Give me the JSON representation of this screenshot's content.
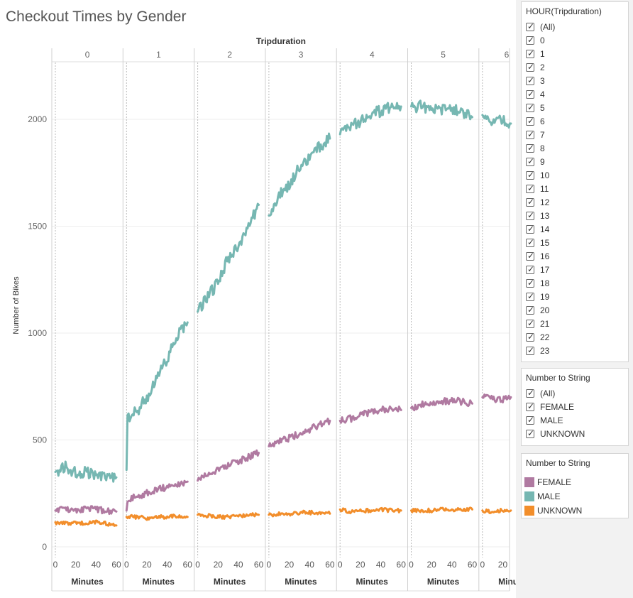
{
  "title": "Checkout Times by Gender",
  "chart_data": {
    "type": "line",
    "title": "Checkout Times by Gender",
    "column_header": "Tripduration",
    "columns": [
      "0",
      "1",
      "2",
      "3",
      "4",
      "5",
      "6"
    ],
    "ylabel": "Number of Bikes",
    "xlabel": "Minutes",
    "ylim": [
      0,
      2300
    ],
    "yticks": [
      0,
      500,
      1000,
      1500,
      2000
    ],
    "xticks": [
      0,
      20,
      40,
      60
    ],
    "last_panel_xticks": [
      0,
      20
    ],
    "grid": true,
    "series": [
      {
        "name": "MALE",
        "color": "#76b7b2",
        "panels": [
          {
            "x": [
              0,
              10,
              20,
              30,
              40,
              50,
              60
            ],
            "y": [
              350,
              375,
              345,
              355,
              330,
              335,
              325
            ]
          },
          {
            "x": [
              0,
              1,
              10,
              20,
              30,
              40,
              50,
              60
            ],
            "y": [
              360,
              610,
              630,
              700,
              790,
              880,
              990,
              1050
            ]
          },
          {
            "x": [
              0,
              10,
              20,
              30,
              40,
              50,
              60
            ],
            "y": [
              1100,
              1170,
              1240,
              1350,
              1410,
              1500,
              1600
            ]
          },
          {
            "x": [
              0,
              10,
              20,
              30,
              40,
              50,
              60
            ],
            "y": [
              1550,
              1640,
              1700,
              1770,
              1820,
              1870,
              1910
            ]
          },
          {
            "x": [
              0,
              10,
              20,
              30,
              40,
              50,
              60
            ],
            "y": [
              1930,
              1960,
              1990,
              2020,
              2040,
              2060,
              2060
            ]
          },
          {
            "x": [
              0,
              10,
              20,
              30,
              40,
              50,
              60
            ],
            "y": [
              2060,
              2060,
              2050,
              2050,
              2050,
              2040,
              2010
            ]
          },
          {
            "x": [
              0,
              10,
              20,
              28
            ],
            "y": [
              2020,
              1990,
              1990,
              1980
            ]
          }
        ]
      },
      {
        "name": "FEMALE",
        "color": "#b07aa1",
        "panels": [
          {
            "x": [
              0,
              10,
              20,
              30,
              40,
              50,
              60
            ],
            "y": [
              170,
              175,
              170,
              180,
              175,
              170,
              165
            ]
          },
          {
            "x": [
              0,
              1,
              10,
              20,
              30,
              40,
              50,
              60
            ],
            "y": [
              170,
              220,
              235,
              250,
              265,
              280,
              295,
              305
            ]
          },
          {
            "x": [
              0,
              10,
              20,
              30,
              40,
              50,
              60
            ],
            "y": [
              310,
              340,
              360,
              380,
              400,
              420,
              440
            ]
          },
          {
            "x": [
              0,
              10,
              20,
              30,
              40,
              50,
              60
            ],
            "y": [
              470,
              490,
              510,
              530,
              550,
              570,
              590
            ]
          },
          {
            "x": [
              0,
              10,
              20,
              30,
              40,
              50,
              60
            ],
            "y": [
              590,
              600,
              615,
              630,
              640,
              645,
              640
            ]
          },
          {
            "x": [
              0,
              10,
              20,
              30,
              40,
              50,
              60
            ],
            "y": [
              650,
              665,
              675,
              680,
              685,
              680,
              670
            ]
          },
          {
            "x": [
              0,
              10,
              20,
              28
            ],
            "y": [
              700,
              690,
              690,
              700
            ]
          }
        ]
      },
      {
        "name": "UNKNOWN",
        "color": "#f28e2b",
        "panels": [
          {
            "x": [
              0,
              10,
              20,
              30,
              40,
              50,
              60
            ],
            "y": [
              115,
              110,
              115,
              110,
              115,
              110,
              100
            ]
          },
          {
            "x": [
              0,
              10,
              20,
              30,
              40,
              50,
              60
            ],
            "y": [
              140,
              140,
              135,
              140,
              140,
              145,
              140
            ]
          },
          {
            "x": [
              0,
              10,
              20,
              30,
              40,
              50,
              60
            ],
            "y": [
              150,
              145,
              140,
              140,
              145,
              150,
              150
            ]
          },
          {
            "x": [
              0,
              10,
              20,
              30,
              40,
              50,
              60
            ],
            "y": [
              150,
              155,
              155,
              160,
              160,
              160,
              155
            ]
          },
          {
            "x": [
              0,
              10,
              20,
              30,
              40,
              50,
              60
            ],
            "y": [
              175,
              165,
              170,
              170,
              175,
              170,
              170
            ]
          },
          {
            "x": [
              0,
              10,
              20,
              30,
              40,
              50,
              60
            ],
            "y": [
              170,
              170,
              170,
              175,
              170,
              175,
              175
            ]
          },
          {
            "x": [
              0,
              10,
              20,
              28
            ],
            "y": [
              170,
              165,
              170,
              170
            ]
          }
        ]
      }
    ]
  },
  "filters": {
    "hour": {
      "title": "HOUR(Tripduration)",
      "items": [
        "(All)",
        "0",
        "1",
        "2",
        "3",
        "4",
        "5",
        "6",
        "7",
        "8",
        "9",
        "10",
        "11",
        "12",
        "13",
        "14",
        "15",
        "16",
        "17",
        "18",
        "19",
        "20",
        "21",
        "22",
        "23"
      ]
    },
    "gender": {
      "title": "Number to String",
      "items": [
        "(All)",
        "FEMALE",
        "MALE",
        "UNKNOWN"
      ]
    }
  },
  "legend": {
    "title": "Number to String",
    "items": [
      {
        "label": "FEMALE",
        "color": "#b07aa1"
      },
      {
        "label": "MALE",
        "color": "#76b7b2"
      },
      {
        "label": "UNKNOWN",
        "color": "#f28e2b"
      }
    ]
  }
}
